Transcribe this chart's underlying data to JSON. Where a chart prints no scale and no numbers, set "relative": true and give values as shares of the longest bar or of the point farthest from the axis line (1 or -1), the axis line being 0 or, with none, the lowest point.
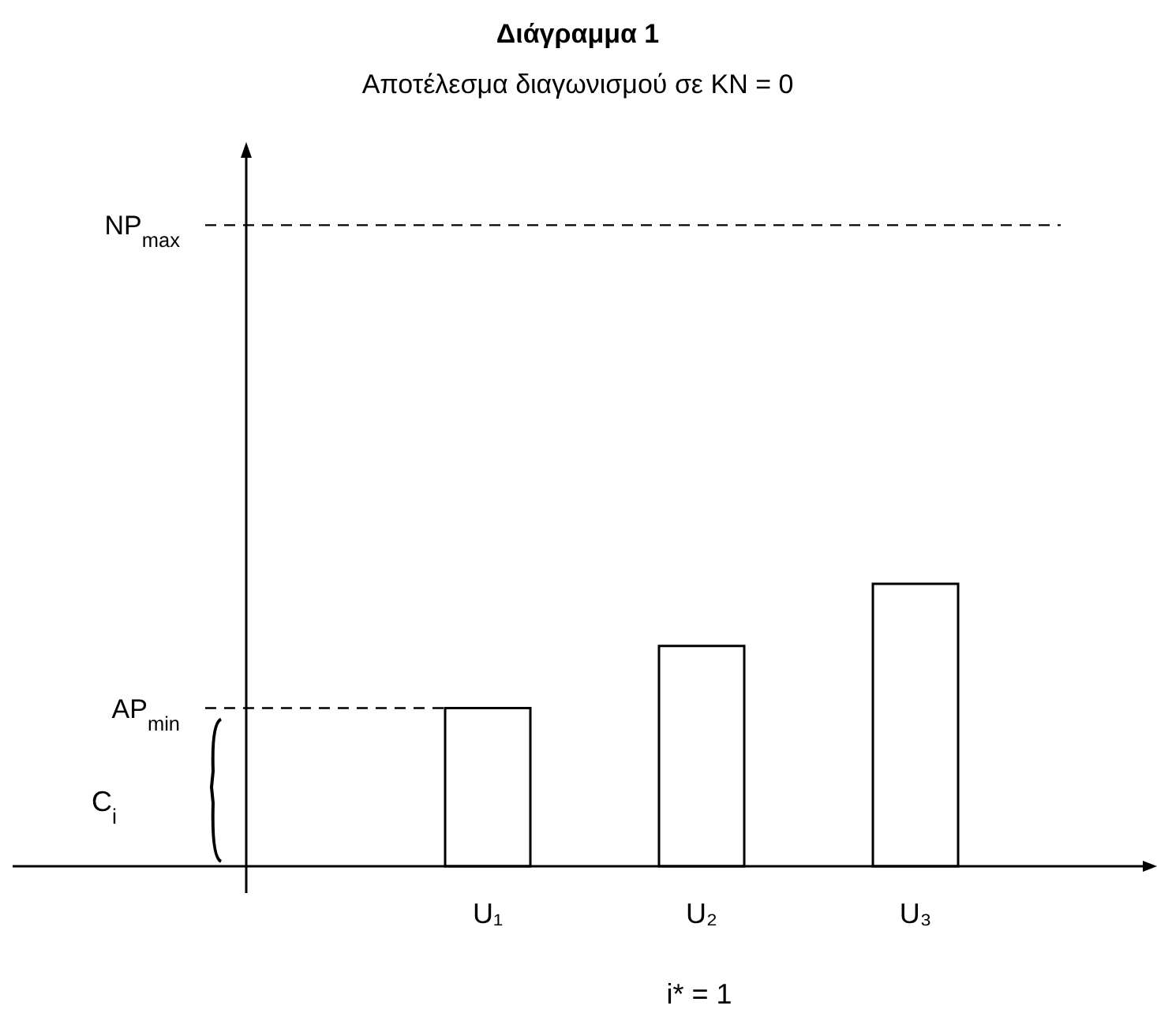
{
  "chart_data": {
    "type": "bar",
    "title": "Διάγραμμα 1",
    "subtitle": "Αποτέλεσμα διαγωνισμού σε KN = 0",
    "categories": [
      "U₁",
      "U₂",
      "U₃"
    ],
    "values": [
      0.56,
      0.78,
      1
    ],
    "color": "#ffffff",
    "relative": true,
    "ref_lines": [
      {
        "axis": "y",
        "value": 2.27,
        "label": "NP$_{max}$",
        "line_style": "dashed"
      },
      {
        "axis": "y",
        "value": 0.56,
        "label": "AP$_{min}$",
        "line_style": "dashed"
      }
    ],
    "annotations": [
      "C$_{i}$",
      "i* = 1"
    ]
  }
}
